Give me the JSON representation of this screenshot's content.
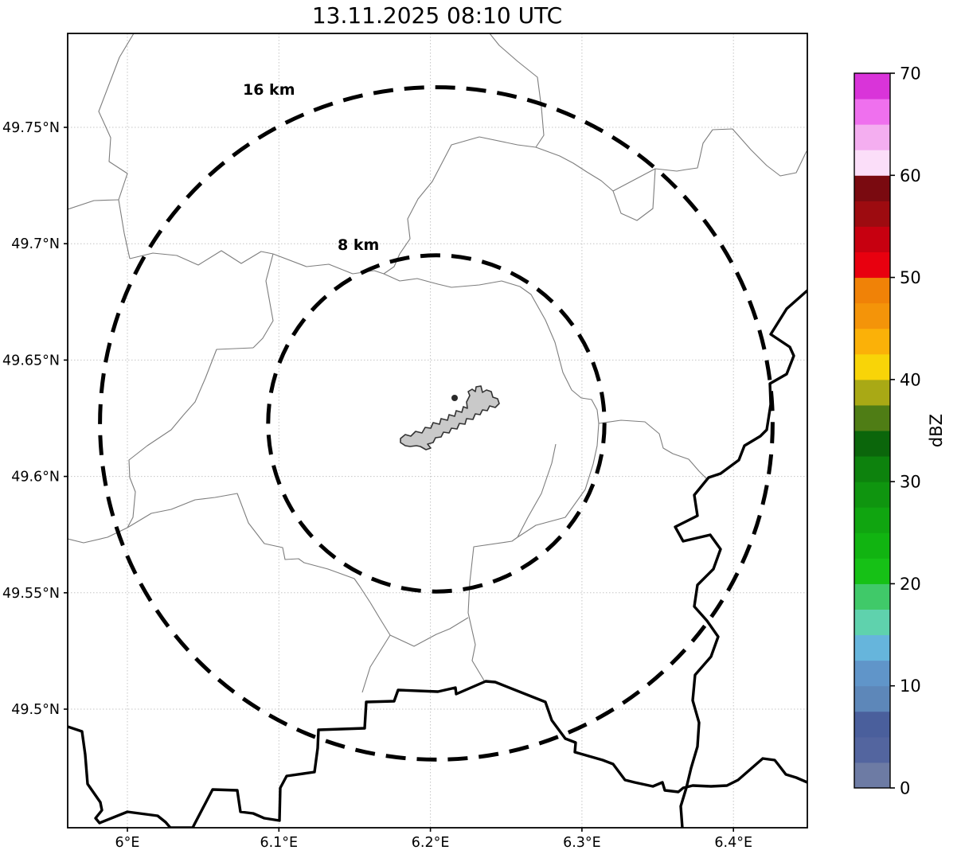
{
  "title": "13.11.2025 08:10 UTC",
  "map": {
    "x_ticks": [
      {
        "label": "6°E",
        "lon": 6.0
      },
      {
        "label": "6.1°E",
        "lon": 6.1
      },
      {
        "label": "6.2°E",
        "lon": 6.2
      },
      {
        "label": "6.3°E",
        "lon": 6.3
      },
      {
        "label": "6.4°E",
        "lon": 6.4
      }
    ],
    "y_ticks": [
      {
        "label": "49.75°N",
        "lat": 49.75
      },
      {
        "label": "49.7°N",
        "lat": 49.7
      },
      {
        "label": "49.65°N",
        "lat": 49.65
      },
      {
        "label": "49.6°N",
        "lat": 49.6
      },
      {
        "label": "49.55°N",
        "lat": 49.55
      },
      {
        "label": "49.5°N",
        "lat": 49.5
      }
    ],
    "range_rings": [
      {
        "label": "16 km",
        "radius_km": 16
      },
      {
        "label": "8 km",
        "radius_km": 8
      }
    ]
  },
  "colorbar": {
    "label": "dBZ",
    "min": 0,
    "max": 70,
    "step": 2.5,
    "tick_values": [
      "0",
      "10",
      "20",
      "30",
      "40",
      "50",
      "60",
      "70"
    ],
    "colors_bottom_to_top": [
      "#6d7ba4",
      "#53659f",
      "#4a5f9c",
      "#5d87b9",
      "#6095c9",
      "#66b5dc",
      "#5fd2ad",
      "#40c969",
      "#16c116",
      "#11b411",
      "#10a510",
      "#0f950f",
      "#0d820d",
      "#0b660b",
      "#4f7d15",
      "#a9a915",
      "#f8d408",
      "#fbb108",
      "#f49409",
      "#f08207",
      "#e8000f",
      "#c70010",
      "#9d0b10",
      "#7a0a10",
      "#fbdef9",
      "#f4aef0",
      "#ef70ee",
      "#d934d9"
    ]
  },
  "colors": {
    "grid": "#c4c4c4",
    "boundary_thin": "#7d7d7d",
    "border_thick": "#000000",
    "ring": "#000000",
    "airport_fill": "#c9c9c9",
    "airport_stroke": "#333333",
    "frame": "#000000"
  }
}
